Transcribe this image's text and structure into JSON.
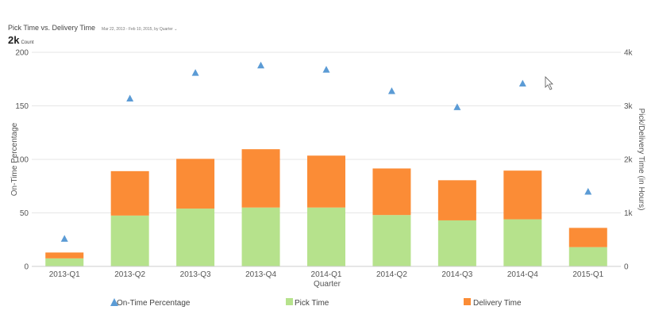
{
  "header": {
    "title": "Pick Time vs. Delivery Time",
    "subtitle": "Mar 22, 2013 - Feb 10, 2015, by Quarter",
    "kpi_value": "2k",
    "kpi_unit": "Count"
  },
  "chart_data": {
    "type": "bar",
    "stacked": true,
    "categories": [
      "2013-Q1",
      "2013-Q2",
      "2013-Q3",
      "2013-Q4",
      "2014-Q1",
      "2014-Q2",
      "2014-Q3",
      "2014-Q4",
      "2015-Q1"
    ],
    "xlabel": "Quarter",
    "ylabel_left": "On-Time Percentage",
    "ylabel_right": "Pick/Delivery Time (in Hours)",
    "ylim_left": [
      0,
      200
    ],
    "ylim_right": [
      0,
      4000
    ],
    "yticks_left": [
      "0",
      "50",
      "100",
      "150",
      "200"
    ],
    "yticks_right": [
      "0",
      "1k",
      "2k",
      "3k",
      "4k"
    ],
    "grid": true,
    "legend_position": "bottom",
    "series": [
      {
        "name": "On-Time Percentage",
        "kind": "scatter",
        "axis": "left",
        "color": "#5b9bd5",
        "marker": "triangle",
        "values": [
          26,
          157,
          181,
          188,
          184,
          164,
          149,
          171,
          70
        ]
      },
      {
        "name": "Pick Time",
        "kind": "bar",
        "axis": "right",
        "color": "#b6e28c",
        "values": [
          150,
          950,
          1080,
          1100,
          1100,
          960,
          860,
          880,
          360
        ]
      },
      {
        "name": "Delivery Time",
        "kind": "bar",
        "axis": "right",
        "color": "#fb8c36",
        "values": [
          110,
          830,
          930,
          1090,
          970,
          870,
          750,
          910,
          360
        ]
      }
    ]
  }
}
